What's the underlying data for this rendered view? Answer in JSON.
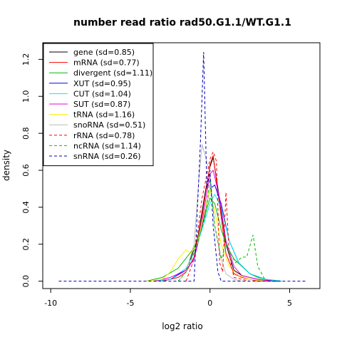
{
  "chart_data": {
    "type": "line",
    "title": "number read ratio rad50.G1.1/WT.G1.1",
    "xlabel": "log2 ratio",
    "ylabel": "density",
    "xlim": [
      -10.5,
      6.9
    ],
    "ylim": [
      -0.04,
      1.29
    ],
    "x_ticks": [
      -10,
      -5,
      0,
      5
    ],
    "y_ticks": [
      0.0,
      0.2,
      0.4,
      0.6,
      0.8,
      1.0,
      1.2
    ],
    "x_tick_labels": [
      "-10",
      "-5",
      "0",
      "5"
    ],
    "y_tick_labels": [
      "0.0",
      "0.2",
      "0.4",
      "0.6",
      "0.8",
      "1.0",
      "1.2"
    ],
    "grid": false,
    "legend_position": "top-left",
    "series": [
      {
        "name": "gene (sd=0.85)",
        "color": "#000000",
        "dash": "solid",
        "x": [
          -3.5,
          -2.5,
          -1.5,
          -0.8,
          -0.3,
          0.0,
          0.2,
          0.5,
          1.0,
          1.5,
          2.0,
          3.0,
          4.0,
          4.5
        ],
        "y": [
          0.0,
          0.01,
          0.06,
          0.22,
          0.48,
          0.62,
          0.67,
          0.5,
          0.2,
          0.06,
          0.03,
          0.01,
          0.0,
          0.0
        ]
      },
      {
        "name": "mRNA (sd=0.77)",
        "color": "#ff0000",
        "dash": "solid",
        "x": [
          -3.0,
          -2.0,
          -1.5,
          -1.0,
          -0.5,
          0.0,
          0.2,
          0.5,
          1.0,
          1.5,
          2.0,
          3.0,
          4.0
        ],
        "y": [
          0.0,
          0.02,
          0.05,
          0.13,
          0.35,
          0.63,
          0.68,
          0.48,
          0.15,
          0.04,
          0.02,
          0.0,
          0.0
        ]
      },
      {
        "name": "divergent (sd=1.11)",
        "color": "#00bb00",
        "dash": "solid",
        "x": [
          -4.0,
          -3.0,
          -2.0,
          -1.0,
          -0.5,
          0.0,
          0.3,
          0.7,
          1.0,
          1.5,
          2.0,
          2.5,
          3.0,
          4.0
        ],
        "y": [
          0.0,
          0.02,
          0.07,
          0.18,
          0.3,
          0.45,
          0.42,
          0.28,
          0.2,
          0.12,
          0.08,
          0.04,
          0.02,
          0.0
        ]
      },
      {
        "name": "XUT (sd=0.95)",
        "color": "#0000ff",
        "dash": "solid",
        "x": [
          -3.5,
          -2.5,
          -1.5,
          -1.0,
          -0.5,
          0.0,
          0.3,
          0.7,
          1.2,
          1.8,
          2.5,
          3.5,
          4.5
        ],
        "y": [
          0.0,
          0.01,
          0.06,
          0.12,
          0.3,
          0.5,
          0.52,
          0.42,
          0.22,
          0.1,
          0.04,
          0.01,
          0.0
        ]
      },
      {
        "name": "CUT (sd=1.04)",
        "color": "#00eeee",
        "dash": "solid",
        "x": [
          -3.5,
          -2.5,
          -1.5,
          -1.0,
          -0.5,
          0.0,
          0.3,
          0.7,
          1.2,
          1.8,
          2.5,
          3.5,
          4.5
        ],
        "y": [
          0.0,
          0.01,
          0.07,
          0.15,
          0.28,
          0.42,
          0.47,
          0.4,
          0.22,
          0.1,
          0.04,
          0.01,
          0.0
        ]
      },
      {
        "name": "SUT (sd=0.87)",
        "color": "#ee00ee",
        "dash": "solid",
        "x": [
          -3.5,
          -2.5,
          -1.5,
          -1.0,
          -0.5,
          0.0,
          0.2,
          0.6,
          1.0,
          1.5,
          2.0,
          3.0,
          4.0
        ],
        "y": [
          0.0,
          0.02,
          0.06,
          0.12,
          0.32,
          0.58,
          0.6,
          0.45,
          0.22,
          0.08,
          0.03,
          0.01,
          0.0
        ]
      },
      {
        "name": "tRNA (sd=1.16)",
        "color": "#ffee00",
        "dash": "solid",
        "x": [
          -4.0,
          -3.0,
          -2.5,
          -2.0,
          -1.5,
          -1.2,
          -0.8,
          -0.4,
          0.0,
          0.3,
          0.7,
          1.2,
          1.8,
          2.5,
          3.5
        ],
        "y": [
          0.0,
          0.01,
          0.05,
          0.12,
          0.17,
          0.15,
          0.2,
          0.35,
          0.5,
          0.38,
          0.2,
          0.08,
          0.03,
          0.01,
          0.0
        ]
      },
      {
        "name": "snoRNA (sd=0.51)",
        "color": "#bbbbbb",
        "dash": "solid",
        "x": [
          -2.0,
          -1.5,
          -1.0,
          -0.7,
          -0.5,
          -0.3,
          0.0,
          0.3,
          0.7,
          1.0,
          1.5,
          2.0
        ],
        "y": [
          0.0,
          0.05,
          0.2,
          0.55,
          0.74,
          0.68,
          0.58,
          0.3,
          0.12,
          0.04,
          0.01,
          0.0
        ]
      },
      {
        "name": "rRNA (sd=0.78)",
        "color": "#ff0000",
        "dash": "dashed",
        "x": [
          -1.5,
          -1.0,
          -0.5,
          0.0,
          0.2,
          0.4,
          0.6,
          0.8,
          1.0,
          1.2,
          1.5,
          2.5
        ],
        "y": [
          0.0,
          0.12,
          0.45,
          0.66,
          0.7,
          0.65,
          0.1,
          0.05,
          0.48,
          0.15,
          0.02,
          0.0
        ]
      },
      {
        "name": "ncRNA (sd=1.14)",
        "color": "#00bb00",
        "dash": "dashed",
        "x": [
          -2.0,
          -1.5,
          -0.8,
          -0.3,
          0.0,
          0.3,
          0.7,
          1.0,
          1.3,
          1.6,
          2.0,
          2.3,
          2.7,
          3.0,
          3.5
        ],
        "y": [
          0.0,
          0.05,
          0.2,
          0.35,
          0.55,
          0.3,
          0.12,
          0.2,
          0.15,
          0.1,
          0.13,
          0.13,
          0.25,
          0.08,
          0.0
        ]
      },
      {
        "name": "snRNA (sd=0.26)",
        "color": "#0000bb",
        "dash": "dashed",
        "x": [
          -9.5,
          -4.0,
          -1.0,
          -0.6,
          -0.4,
          -0.2,
          0.0,
          0.2,
          0.5,
          0.7,
          6.0
        ],
        "y": [
          0.0,
          0.0,
          0.0,
          0.75,
          1.24,
          0.5,
          0.6,
          0.3,
          0.05,
          0.0,
          0.0
        ]
      }
    ]
  }
}
